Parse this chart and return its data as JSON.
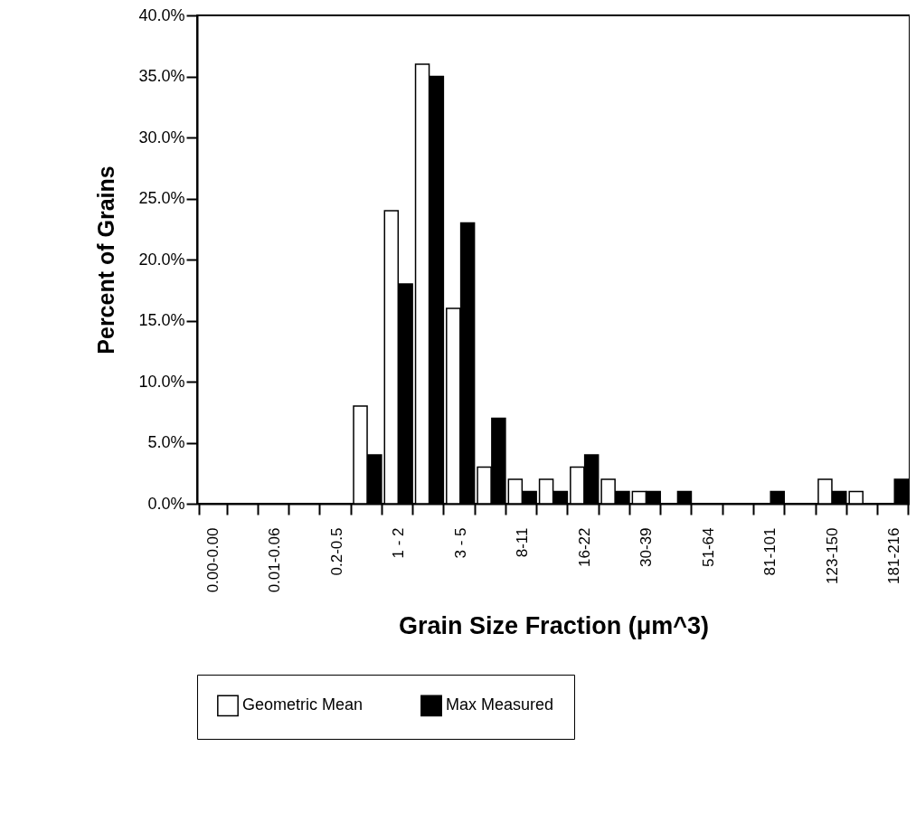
{
  "chart_data": {
    "type": "bar",
    "xlabel": "Grain Size Fraction (μm^3)",
    "ylabel": "Percent of Grains",
    "categories": [
      "0.00-0.00",
      null,
      "0.01-0.06",
      null,
      "0.2-0.5",
      null,
      "1 - 2",
      null,
      "3 - 5",
      null,
      "8-11",
      null,
      "16-22",
      null,
      "30-39",
      null,
      "51-64",
      null,
      "81-101",
      null,
      "123-150",
      null,
      "181-216"
    ],
    "series": [
      {
        "name": "Geometric Mean",
        "color": "#ffffff",
        "values": [
          0,
          0,
          0,
          0,
          0,
          8,
          24,
          36,
          16,
          3,
          2,
          2,
          3,
          2,
          1,
          0,
          0,
          0,
          0,
          0,
          2,
          1,
          0
        ]
      },
      {
        "name": "Max Measured",
        "color": "#000000",
        "values": [
          0,
          0,
          0,
          0,
          0,
          4,
          18,
          35,
          23,
          7,
          1,
          1,
          4,
          1,
          1,
          1,
          0,
          0,
          1,
          0,
          1,
          0,
          2
        ]
      }
    ],
    "ylim": [
      0,
      40
    ],
    "yticks": [
      {
        "value": 0,
        "label": "0.0%"
      },
      {
        "value": 5,
        "label": "5.0%"
      },
      {
        "value": 10,
        "label": "10.0%"
      },
      {
        "value": 15,
        "label": "15.0%"
      },
      {
        "value": 20,
        "label": "20.0%"
      },
      {
        "value": 25,
        "label": "25.0%"
      },
      {
        "value": 30,
        "label": "30.0%"
      },
      {
        "value": 35,
        "label": "35.0%"
      },
      {
        "value": 40,
        "label": "40.0%"
      }
    ],
    "grid": false,
    "legend": "bottom"
  }
}
